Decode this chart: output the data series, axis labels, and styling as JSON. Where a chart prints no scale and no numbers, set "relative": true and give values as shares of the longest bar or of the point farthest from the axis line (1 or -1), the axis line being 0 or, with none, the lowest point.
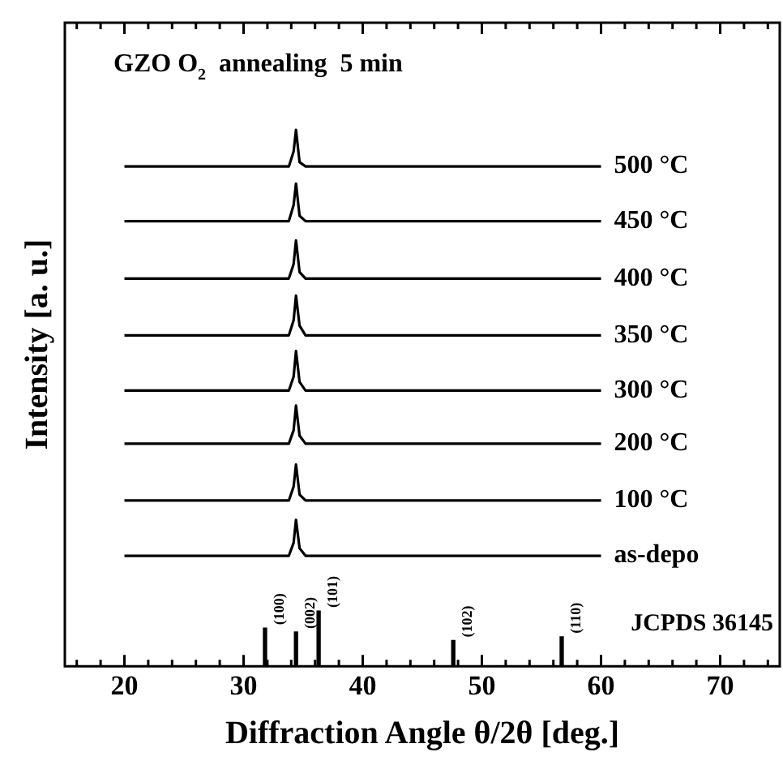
{
  "chart_data": {
    "type": "line",
    "title": "GZO O$_{2}$  annealing  5 min",
    "xlabel": "Diffraction Angle θ/2θ [deg.]",
    "ylabel": "Intensity [a. u.]",
    "relative": true,
    "tick_labels": "x",
    "grid": false,
    "marker": "none",
    "xlim": [
      15,
      75
    ],
    "xticks": [
      {
        "value": 16,
        "label": null
      },
      {
        "value": 18,
        "label": null
      },
      20,
      {
        "value": 22,
        "label": null
      },
      {
        "value": 24,
        "label": null
      },
      {
        "value": 26,
        "label": null
      },
      {
        "value": 28,
        "label": null
      },
      30,
      {
        "value": 32,
        "label": null
      },
      {
        "value": 34,
        "label": null
      },
      {
        "value": 36,
        "label": null
      },
      {
        "value": 38,
        "label": null
      },
      40,
      {
        "value": 42,
        "label": null
      },
      {
        "value": 44,
        "label": null
      },
      {
        "value": 46,
        "label": null
      },
      {
        "value": 48,
        "label": null
      },
      50,
      {
        "value": 52,
        "label": null
      },
      {
        "value": 54,
        "label": null
      },
      {
        "value": 56,
        "label": null
      },
      {
        "value": 58,
        "label": null
      },
      60,
      {
        "value": 62,
        "label": null
      },
      {
        "value": 64,
        "label": null
      },
      {
        "value": 66,
        "label": null
      },
      {
        "value": 68,
        "label": null
      },
      70,
      {
        "value": 72,
        "label": null
      },
      {
        "value": 74,
        "label": null
      }
    ],
    "x": [
      20,
      33.8,
      34.2,
      34.4,
      34.7,
      35.2,
      60
    ],
    "series": [
      {
        "name": "500 °C",
        "color": "#000000",
        "values": [
          0.932,
          0.932,
          0.96,
          1.0,
          0.94,
          0.932,
          0.932
        ]
      },
      {
        "name": "450 °C",
        "color": "#000000",
        "values": [
          0.83,
          0.83,
          0.86,
          0.9,
          0.84,
          0.83,
          0.83
        ]
      },
      {
        "name": "400 °C",
        "color": "#000000",
        "values": [
          0.723,
          0.723,
          0.75,
          0.794,
          0.735,
          0.723,
          0.723
        ]
      },
      {
        "name": "350 °C",
        "color": "#000000",
        "values": [
          0.617,
          0.617,
          0.645,
          0.691,
          0.635,
          0.617,
          0.617
        ]
      },
      {
        "name": "300 °C",
        "color": "#000000",
        "values": [
          0.514,
          0.514,
          0.54,
          0.588,
          0.53,
          0.514,
          0.514
        ]
      },
      {
        "name": "200 °C",
        "color": "#000000",
        "values": [
          0.415,
          0.415,
          0.44,
          0.486,
          0.43,
          0.415,
          0.415
        ]
      },
      {
        "name": "100 °C",
        "color": "#000000",
        "values": [
          0.309,
          0.309,
          0.335,
          0.376,
          0.32,
          0.309,
          0.309
        ]
      },
      {
        "name": "as-depo",
        "color": "#000000",
        "values": [
          0.206,
          0.206,
          0.23,
          0.273,
          0.22,
          0.206,
          0.206
        ]
      },
      {
        "type": "bar",
        "color": "#000000",
        "x": [
          31.8,
          34.4,
          36.3,
          47.6,
          56.7
        ],
        "values": [
          0.071,
          0.064,
          0.103,
          0.048,
          0.055
        ]
      }
    ],
    "annotations": [
      {
        "text": "(100)",
        "x": 31.8,
        "y": 0.071
      },
      {
        "text": "(002)",
        "x": 34.4,
        "y": 0.064
      },
      {
        "text": "(101)",
        "x": 36.3,
        "y": 0.103
      },
      {
        "text": "(102)",
        "x": 47.6,
        "y": 0.048
      },
      {
        "text": "(110)",
        "x": 56.7,
        "y": 0.055
      },
      "JCPDS 36145"
    ]
  }
}
